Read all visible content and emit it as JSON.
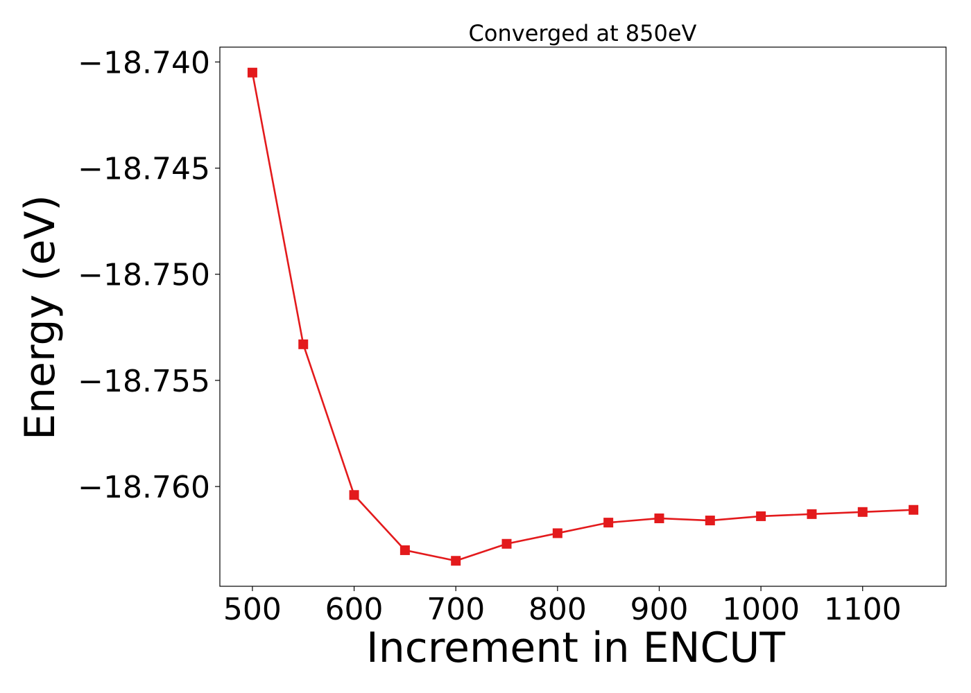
{
  "chart_data": {
    "type": "line",
    "title": "Converged at 850eV",
    "xlabel": "Increment in ENCUT",
    "ylabel": "Energy (eV)",
    "x": [
      500,
      550,
      600,
      650,
      700,
      750,
      800,
      850,
      900,
      950,
      1000,
      1050,
      1100,
      1150
    ],
    "series": [
      {
        "values": [
          -18.7405,
          -18.7533,
          -18.7604,
          -18.763,
          -18.7635,
          -18.7627,
          -18.7622,
          -18.7617,
          -18.7615,
          -18.7616,
          -18.7614,
          -18.7613,
          -18.7612,
          -18.7611
        ],
        "color": "#e31a1c",
        "marker": "square"
      }
    ],
    "xticks": [
      500,
      600,
      700,
      800,
      900,
      1000,
      1100
    ],
    "xtick_labels": [
      "500",
      "600",
      "700",
      "800",
      "900",
      "1000",
      "1100"
    ],
    "yticks": [
      -18.74,
      -18.745,
      -18.75,
      -18.755,
      -18.76
    ],
    "ytick_labels": [
      "−18.740",
      "−18.745",
      "−18.750",
      "−18.755",
      "−18.760"
    ],
    "xlim": [
      468,
      1182
    ],
    "ylim": [
      -18.7647,
      -18.7393
    ],
    "grid": false,
    "legend": "none"
  }
}
